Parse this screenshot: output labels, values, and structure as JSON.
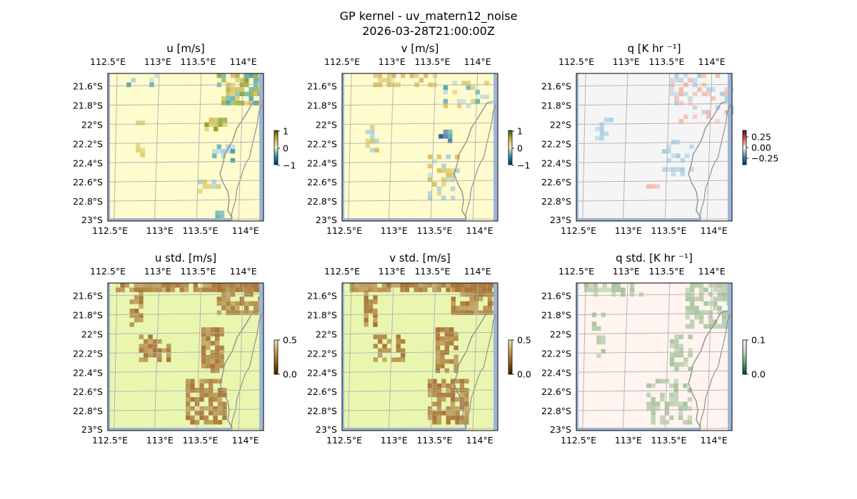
{
  "figure": {
    "title_line1": "GP kernel - uv_matern12_noise",
    "title_line2": "2026-03-28T21:00:00Z"
  },
  "colors": {
    "land": "#ffffff",
    "water": "#9db6d8",
    "grid": "#b0b0b0",
    "coast": "#8a8a8a",
    "speckle_gold": "#d8c060",
    "speckle_olive": "#86a020",
    "speckle_teal": "#3f9fb0",
    "speckle_blue": "#1f5fa0",
    "speckle_lightblue": "#a9cde3",
    "speckle_red": "#f4b8a6",
    "std_brown": "#a87436",
    "std_green": "#a9c59c"
  },
  "chart_data": [
    {
      "type": "heatmap",
      "panel": "u",
      "title": "u [m/s]",
      "xticklabels": [
        "112.5°E",
        "113°E",
        "113.5°E",
        "114°E"
      ],
      "yticklabels": [
        "21.6°S",
        "21.8°S",
        "22°S",
        "22.2°S",
        "22.4°S",
        "22.6°S",
        "22.8°S",
        "23°S"
      ],
      "xlim": [
        112.5,
        114.2
      ],
      "ylim": [
        -23.0,
        -21.5
      ],
      "colorbar": {
        "ticks": [
          "1",
          "0",
          "−1"
        ],
        "range": [
          -1,
          1
        ],
        "colors": [
          "#04305e",
          "#2f93b3",
          "#f7f7c4",
          "#cbb54a",
          "#3d5f08"
        ]
      },
      "background_color": "#fefbcd",
      "grid": true
    },
    {
      "type": "heatmap",
      "panel": "v",
      "title": "v [m/s]",
      "xticklabels": [
        "112.5°E",
        "113°E",
        "113.5°E",
        "114°E"
      ],
      "yticklabels": [
        "21.6°S",
        "21.8°S",
        "22°S",
        "22.2°S",
        "22.4°S",
        "22.6°S",
        "22.8°S",
        "23°S"
      ],
      "xlim": [
        112.5,
        114.2
      ],
      "ylim": [
        -23.0,
        -21.5
      ],
      "colorbar": {
        "ticks": [
          "1",
          "0",
          "−1"
        ],
        "range": [
          -1,
          1
        ],
        "colors": [
          "#04305e",
          "#2f93b3",
          "#f7f7c4",
          "#cbb54a",
          "#3d5f08"
        ]
      },
      "background_color": "#fefbcd",
      "grid": true
    },
    {
      "type": "heatmap",
      "panel": "q",
      "title": "q [K hr ⁻¹]",
      "xticklabels": [
        "112.5°E",
        "113°E",
        "113.5°E",
        "114°E"
      ],
      "yticklabels": [
        "21.6°S",
        "21.8°S",
        "22°S",
        "22.2°S",
        "22.4°S",
        "22.6°S",
        "22.8°S",
        "23°S"
      ],
      "xlim": [
        112.5,
        114.2
      ],
      "ylim": [
        -23.0,
        -21.5
      ],
      "colorbar": {
        "ticks": [
          "0.25",
          "0.00",
          "−0.25"
        ],
        "range": [
          -0.35,
          0.35
        ],
        "colors": [
          "#053061",
          "#4393c3",
          "#f7f7f7",
          "#d6604d",
          "#67001f"
        ]
      },
      "background_color": "#f5f5f5",
      "grid": true
    },
    {
      "type": "heatmap",
      "panel": "u_std",
      "title": "u std. [m/s]",
      "xticklabels": [
        "112.5°E",
        "113°E",
        "113.5°E",
        "114°E"
      ],
      "yticklabels": [
        "21.6°S",
        "21.8°S",
        "22°S",
        "22.2°S",
        "22.4°S",
        "22.6°S",
        "22.8°S",
        "23°S"
      ],
      "xlim": [
        112.5,
        114.2
      ],
      "ylim": [
        -23.0,
        -21.5
      ],
      "colorbar": {
        "ticks": [
          "0.5",
          "0.0"
        ],
        "range": [
          0,
          0.5
        ],
        "colors": [
          "#3a1f04",
          "#8c5a20",
          "#c6a155",
          "#e6f4b0"
        ]
      },
      "background_color": "#e9f6b0",
      "grid": true
    },
    {
      "type": "heatmap",
      "panel": "v_std",
      "title": "v std. [m/s]",
      "xticklabels": [
        "112.5°E",
        "113°E",
        "113.5°E",
        "114°E"
      ],
      "yticklabels": [
        "21.6°S",
        "21.8°S",
        "22°S",
        "22.2°S",
        "22.4°S",
        "22.6°S",
        "22.8°S",
        "23°S"
      ],
      "xlim": [
        112.5,
        114.2
      ],
      "ylim": [
        -23.0,
        -21.5
      ],
      "colorbar": {
        "ticks": [
          "0.5",
          "0.0"
        ],
        "range": [
          0,
          0.5
        ],
        "colors": [
          "#3a1f04",
          "#8c5a20",
          "#c6a155",
          "#e6f4b0"
        ]
      },
      "background_color": "#e9f6b0",
      "grid": true
    },
    {
      "type": "heatmap",
      "panel": "q_std",
      "title": "q std. [K hr ⁻¹]",
      "xticklabels": [
        "112.5°E",
        "113°E",
        "113.5°E",
        "114°E"
      ],
      "yticklabels": [
        "21.6°S",
        "21.8°S",
        "22°S",
        "22.2°S",
        "22.4°S",
        "22.6°S",
        "22.8°S",
        "23°S"
      ],
      "xlim": [
        112.5,
        114.2
      ],
      "ylim": [
        -23.0,
        -21.5
      ],
      "colorbar": {
        "ticks": [
          "0.1",
          "0.0"
        ],
        "range": [
          0,
          0.1
        ],
        "colors": [
          "#00441b",
          "#5aa86a",
          "#c8dcc0",
          "#fff3ef"
        ]
      },
      "background_color": "#fff4f0",
      "grid": true
    }
  ]
}
